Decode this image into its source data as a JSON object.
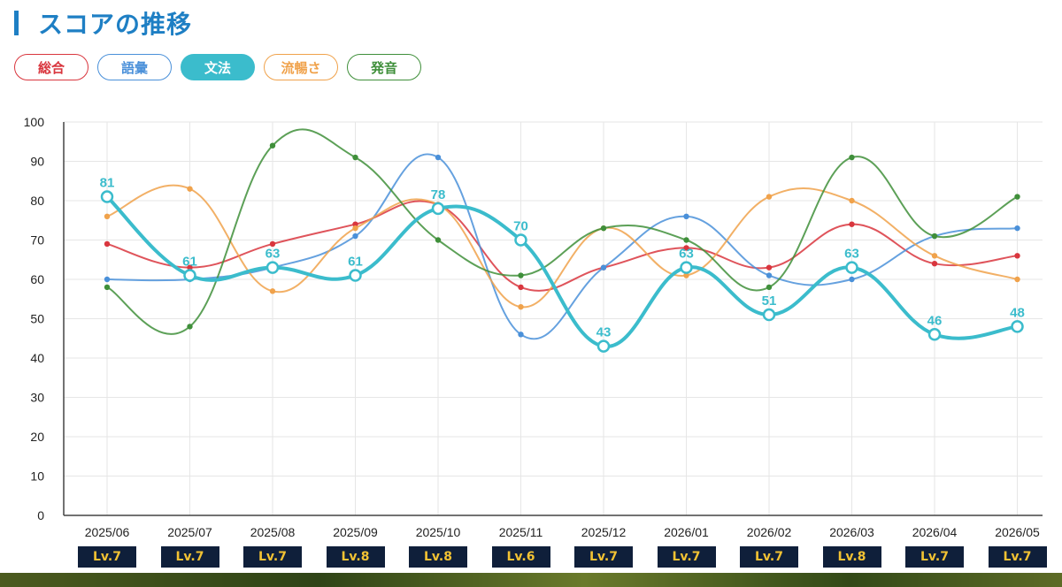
{
  "header": {
    "title": "スコアの推移"
  },
  "tabs": [
    {
      "label": "総合",
      "color": "#d9363e",
      "active": false
    },
    {
      "label": "語彙",
      "color": "#4a90d9",
      "active": false
    },
    {
      "label": "文法",
      "color": "#3bbccc",
      "active": true
    },
    {
      "label": "流暢さ",
      "color": "#f0a24b",
      "active": false
    },
    {
      "label": "発音",
      "color": "#3f8f3a",
      "active": false
    }
  ],
  "chart_data": {
    "type": "line",
    "categories": [
      "2025/06",
      "2025/07",
      "2025/08",
      "2025/09",
      "2025/10",
      "2025/11",
      "2025/12",
      "2026/01",
      "2026/02",
      "2026/03",
      "2026/04",
      "2026/05"
    ],
    "ylim": [
      0,
      100
    ],
    "yticks": [
      0,
      10,
      20,
      30,
      40,
      50,
      60,
      70,
      80,
      90,
      100
    ],
    "grid": true,
    "series": [
      {
        "name": "総合",
        "color": "#d9363e",
        "values": [
          69,
          63,
          69,
          74,
          79,
          58,
          63,
          68,
          63,
          74,
          64,
          66
        ]
      },
      {
        "name": "語彙",
        "color": "#4a90d9",
        "values": [
          60,
          60,
          63,
          71,
          91,
          46,
          63,
          76,
          61,
          60,
          71,
          73
        ]
      },
      {
        "name": "流暢さ",
        "color": "#f0a24b",
        "values": [
          76,
          83,
          57,
          73,
          79,
          53,
          73,
          61,
          81,
          80,
          66,
          60
        ]
      },
      {
        "name": "発音",
        "color": "#3f8f3a",
        "values": [
          58,
          48,
          94,
          91,
          70,
          61,
          73,
          70,
          58,
          91,
          71,
          81
        ]
      },
      {
        "name": "文法",
        "color": "#3bbccc",
        "values": [
          81,
          61,
          63,
          61,
          78,
          70,
          43,
          63,
          51,
          63,
          46,
          48
        ],
        "highlighted": true,
        "data_labels": [
          "81",
          "61",
          "63",
          "61",
          "78",
          "70",
          "43",
          "63",
          "51",
          "63",
          "46",
          "48"
        ]
      }
    ],
    "levels": [
      "Lv.7",
      "Lv.7",
      "Lv.7",
      "Lv.8",
      "Lv.8",
      "Lv.6",
      "Lv.7",
      "Lv.7",
      "Lv.7",
      "Lv.8",
      "Lv.7",
      "Lv.7"
    ]
  }
}
